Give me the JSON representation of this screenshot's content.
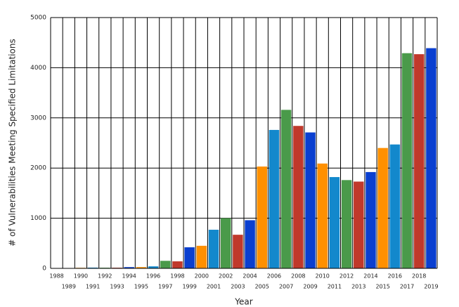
{
  "chart_data": {
    "type": "bar",
    "xlabel": "Year",
    "ylabel": "# of Vulnerabilities Meeting Specified Limitations",
    "categories": [
      "1988",
      "1989",
      "1990",
      "1991",
      "1992",
      "1993",
      "1994",
      "1995",
      "1996",
      "1997",
      "1998",
      "1999",
      "2000",
      "2001",
      "2002",
      "2003",
      "2004",
      "2005",
      "2006",
      "2007",
      "2008",
      "2009",
      "2010",
      "2011",
      "2012",
      "2013",
      "2014",
      "2015",
      "2016",
      "2017",
      "2018",
      "2019"
    ],
    "values": [
      2,
      3,
      11,
      15,
      13,
      13,
      25,
      25,
      40,
      150,
      140,
      420,
      450,
      770,
      1000,
      670,
      960,
      2030,
      2760,
      3160,
      2840,
      2710,
      2090,
      1820,
      1760,
      1730,
      1920,
      2400,
      2470,
      4290,
      4270,
      4390
    ],
    "colors": [
      "#c0392b",
      "#0a3fd0",
      "#ff9000",
      "#1388cc",
      "#4a9a4a",
      "#c0392b",
      "#0a3fd0",
      "#ff9000",
      "#1388cc",
      "#4a9a4a",
      "#c0392b",
      "#0a3fd0",
      "#ff9000",
      "#1388cc",
      "#4a9a4a",
      "#c0392b",
      "#0a3fd0",
      "#ff9000",
      "#1388cc",
      "#4a9a4a",
      "#c0392b",
      "#0a3fd0",
      "#ff9000",
      "#1388cc",
      "#4a9a4a",
      "#c0392b",
      "#0a3fd0",
      "#ff9000",
      "#1388cc",
      "#4a9a4a",
      "#c0392b",
      "#0a3fd0"
    ],
    "ylim": [
      0,
      5000
    ],
    "yticks": [
      0,
      1000,
      2000,
      3000,
      4000,
      5000
    ],
    "grid": true
  }
}
